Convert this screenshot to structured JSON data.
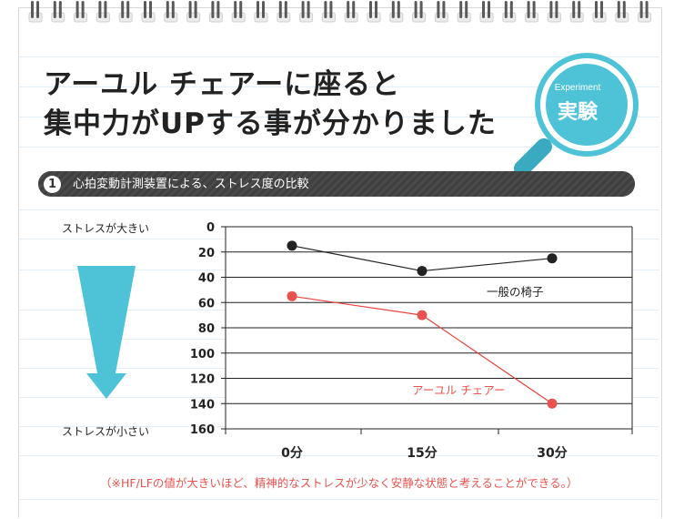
{
  "page": {
    "title_line1": "アーユル チェアーに座ると",
    "title_line2": "集中力がUPする事が分かりました"
  },
  "badge": {
    "en": "Experiment",
    "jp": "実験"
  },
  "section": {
    "number": "1",
    "heading": "心拍変動計測装置による、ストレス度の比較"
  },
  "scale_labels": {
    "high": "ストレスが大きい",
    "low": "ストレスが小さい"
  },
  "chart_data": {
    "type": "line",
    "title": "",
    "xlabel": "",
    "ylabel": "",
    "categories": [
      "0分",
      "15分",
      "30分"
    ],
    "y_ticks": [
      "0",
      "20",
      "40",
      "60",
      "80",
      "100",
      "120",
      "140",
      "160"
    ],
    "ylim": [
      0,
      160
    ],
    "y_inverted": true,
    "grid": true,
    "series": [
      {
        "name": "一般の椅子",
        "values": [
          15,
          35,
          25
        ],
        "color": "#222222"
      },
      {
        "name": "アーユル チェアー",
        "values": [
          55,
          70,
          140
        ],
        "color": "#e8413c"
      }
    ]
  },
  "footnote": "（※HF/LFの値が大きいほど、精神的なストレスが少なく安静な状態と考えることができる。）",
  "colors": {
    "accent": "#4ec3d8",
    "red": "#e8413c",
    "dark_bar": "#3f3f3f"
  }
}
